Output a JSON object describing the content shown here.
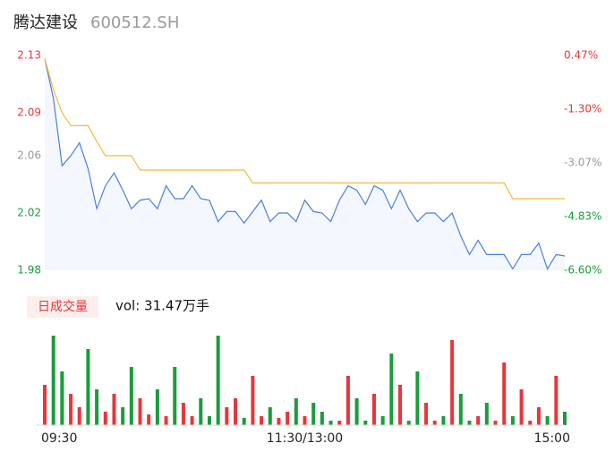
{
  "header": {
    "name": "腾达建设",
    "code": "600512.SH"
  },
  "chart_data": [
    {
      "type": "line",
      "ylim": [
        1.98,
        2.13
      ],
      "yticks": [
        1.98,
        2.02,
        2.06,
        2.09,
        2.13
      ],
      "y2lim": [
        -6.6,
        0.47
      ],
      "y2ticks": [
        {
          "value": -6.6,
          "label": "-6.60%"
        },
        {
          "value": -4.83,
          "label": "-4.83%"
        },
        {
          "value": -3.07,
          "label": "-3.07%"
        },
        {
          "value": -1.3,
          "label": "-1.30%"
        },
        {
          "value": 0.47,
          "label": "0.47%"
        }
      ],
      "series": [
        {
          "color": "#4a7fe0",
          "fill": "#f4f7fd",
          "values": [
            2.128,
            2.1,
            2.053,
            2.06,
            2.069,
            2.051,
            2.023,
            2.039,
            2.048,
            2.036,
            2.023,
            2.029,
            2.03,
            2.023,
            2.039,
            2.03,
            2.03,
            2.039,
            2.03,
            2.029,
            2.014,
            2.021,
            2.021,
            2.013,
            2.021,
            2.029,
            2.014,
            2.02,
            2.02,
            2.014,
            2.029,
            2.021,
            2.02,
            2.014,
            2.029,
            2.039,
            2.036,
            2.026,
            2.039,
            2.036,
            2.023,
            2.036,
            2.023,
            2.014,
            2.02,
            2.02,
            2.014,
            2.02,
            2.004,
            1.991,
            2.001,
            1.991,
            1.991,
            1.991,
            1.981,
            1.991,
            1.991,
            1.999,
            1.981,
            1.991,
            1.99
          ]
        },
        {
          "color": "#f5b93a",
          "values": [
            2.128,
            2.106,
            2.09,
            2.081,
            2.081,
            2.081,
            2.07,
            2.06,
            2.06,
            2.06,
            2.06,
            2.05,
            2.05,
            2.05,
            2.05,
            2.05,
            2.05,
            2.05,
            2.05,
            2.05,
            2.05,
            2.05,
            2.05,
            2.05,
            2.041,
            2.041,
            2.041,
            2.041,
            2.041,
            2.041,
            2.041,
            2.041,
            2.041,
            2.041,
            2.041,
            2.041,
            2.041,
            2.041,
            2.041,
            2.041,
            2.041,
            2.041,
            2.041,
            2.041,
            2.041,
            2.041,
            2.041,
            2.041,
            2.041,
            2.041,
            2.041,
            2.041,
            2.041,
            2.041,
            2.03,
            2.03,
            2.03,
            2.03,
            2.03,
            2.03,
            2.03
          ]
        }
      ]
    },
    {
      "type": "bar",
      "label": "日成交量",
      "summary": "vol: 31.47万手",
      "up_color": "#e8363a",
      "down_color": "#1a9c3c",
      "ylim": [
        0,
        1.05
      ],
      "categories": [
        "09:30",
        null,
        null,
        null,
        null,
        null,
        null,
        null,
        null,
        null,
        null,
        null,
        null,
        null,
        null,
        null,
        null,
        null,
        null,
        null,
        null,
        null,
        null,
        null,
        null,
        null,
        null,
        null,
        null,
        null,
        "11:30/13:00",
        null,
        null,
        null,
        null,
        null,
        null,
        null,
        null,
        null,
        null,
        null,
        null,
        null,
        null,
        null,
        null,
        null,
        null,
        null,
        null,
        null,
        null,
        null,
        null,
        null,
        null,
        null,
        null,
        null,
        "15:00"
      ],
      "values": [
        0.45,
        1.0,
        0.6,
        0.35,
        0.2,
        0.85,
        0.4,
        0.15,
        0.35,
        0.2,
        0.65,
        0.3,
        0.12,
        0.4,
        0.1,
        0.65,
        0.25,
        0.1,
        0.3,
        0.1,
        1.0,
        0.2,
        0.3,
        0.08,
        0.55,
        0.1,
        0.2,
        0.08,
        0.15,
        0.3,
        0.1,
        0.25,
        0.15,
        0.05,
        0.05,
        0.55,
        0.3,
        0.05,
        0.35,
        0.1,
        0.8,
        0.45,
        0.05,
        0.6,
        0.25,
        0.05,
        0.1,
        0.95,
        0.35,
        0.05,
        0.1,
        0.25,
        0.05,
        0.7,
        0.1,
        0.4,
        0.05,
        0.2,
        0.1,
        0.55,
        0.15
      ]
    }
  ]
}
